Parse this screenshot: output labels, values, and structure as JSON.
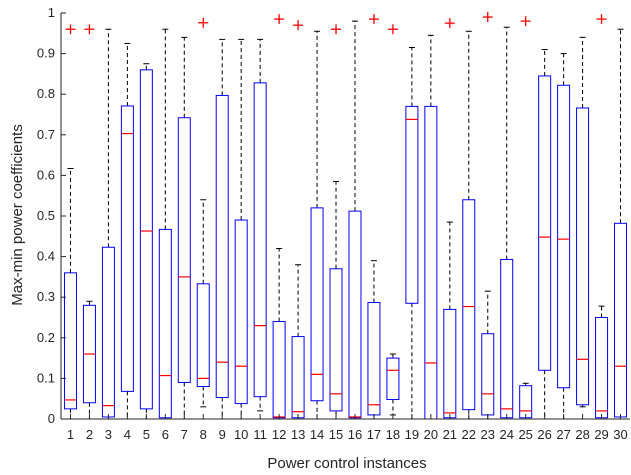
{
  "chart_data": {
    "type": "boxplot",
    "xlabel": "Power control instances",
    "ylabel": "Max-min power coefficients",
    "ylim": [
      0,
      1
    ],
    "yticks": [
      0,
      0.1,
      0.2,
      0.3,
      0.4,
      0.5,
      0.6,
      0.7,
      0.8,
      0.9,
      1
    ],
    "ytick_labels": [
      "0",
      "0.1",
      "0.2",
      "0.3",
      "0.4",
      "0.5",
      "0.6",
      "0.7",
      "0.8",
      "0.9",
      "1"
    ],
    "categories": [
      "1",
      "2",
      "3",
      "4",
      "5",
      "6",
      "7",
      "8",
      "9",
      "10",
      "11",
      "12",
      "13",
      "14",
      "15",
      "16",
      "17",
      "18",
      "19",
      "20",
      "21",
      "22",
      "23",
      "24",
      "25",
      "26",
      "27",
      "28",
      "29",
      "30"
    ],
    "grid": false,
    "colors": {
      "box": "#0000ff",
      "median": "#ff0000",
      "whisker": "#000000",
      "outlier": "#ff0000",
      "axis": "#262626"
    },
    "boxes": [
      {
        "lower_whisker": 0.0,
        "q1": 0.025,
        "median": 0.047,
        "q3": 0.36,
        "upper_whisker": 0.617,
        "outliers": [
          0.96
        ]
      },
      {
        "lower_whisker": 0.0,
        "q1": 0.04,
        "median": 0.16,
        "q3": 0.28,
        "upper_whisker": 0.29,
        "outliers": [
          0.96
        ]
      },
      {
        "lower_whisker": 0.0,
        "q1": 0.005,
        "median": 0.033,
        "q3": 0.423,
        "upper_whisker": 0.96,
        "outliers": []
      },
      {
        "lower_whisker": 0.0,
        "q1": 0.068,
        "median": 0.703,
        "q3": 0.771,
        "upper_whisker": 0.925,
        "outliers": []
      },
      {
        "lower_whisker": 0.0,
        "q1": 0.025,
        "median": 0.463,
        "q3": 0.86,
        "upper_whisker": 0.875,
        "outliers": []
      },
      {
        "lower_whisker": 0.0,
        "q1": 0.003,
        "median": 0.107,
        "q3": 0.467,
        "upper_whisker": 0.96,
        "outliers": []
      },
      {
        "lower_whisker": 0.0,
        "q1": 0.09,
        "median": 0.35,
        "q3": 0.742,
        "upper_whisker": 0.94,
        "outliers": []
      },
      {
        "lower_whisker": 0.03,
        "q1": 0.08,
        "median": 0.1,
        "q3": 0.333,
        "upper_whisker": 0.54,
        "outliers": [
          0.976
        ]
      },
      {
        "lower_whisker": 0.0,
        "q1": 0.053,
        "median": 0.14,
        "q3": 0.797,
        "upper_whisker": 0.935,
        "outliers": []
      },
      {
        "lower_whisker": 0.0,
        "q1": 0.038,
        "median": 0.13,
        "q3": 0.49,
        "upper_whisker": 0.935,
        "outliers": []
      },
      {
        "lower_whisker": 0.02,
        "q1": 0.055,
        "median": 0.23,
        "q3": 0.828,
        "upper_whisker": 0.935,
        "outliers": []
      },
      {
        "lower_whisker": 0.0,
        "q1": 0.003,
        "median": 0.005,
        "q3": 0.24,
        "upper_whisker": 0.42,
        "outliers": [
          0.985
        ]
      },
      {
        "lower_whisker": 0.0,
        "q1": 0.003,
        "median": 0.018,
        "q3": 0.203,
        "upper_whisker": 0.38,
        "outliers": [
          0.97
        ]
      },
      {
        "lower_whisker": 0.0,
        "q1": 0.045,
        "median": 0.11,
        "q3": 0.52,
        "upper_whisker": 0.955,
        "outliers": []
      },
      {
        "lower_whisker": 0.0,
        "q1": 0.02,
        "median": 0.062,
        "q3": 0.37,
        "upper_whisker": 0.585,
        "outliers": [
          0.96
        ]
      },
      {
        "lower_whisker": 0.0,
        "q1": 0.003,
        "median": 0.005,
        "q3": 0.512,
        "upper_whisker": 0.98,
        "outliers": []
      },
      {
        "lower_whisker": 0.0,
        "q1": 0.01,
        "median": 0.035,
        "q3": 0.287,
        "upper_whisker": 0.39,
        "outliers": [
          0.985
        ]
      },
      {
        "lower_whisker": 0.01,
        "q1": 0.048,
        "median": 0.12,
        "q3": 0.15,
        "upper_whisker": 0.16,
        "outliers": [
          0.96
        ]
      },
      {
        "lower_whisker": 0.0,
        "q1": 0.285,
        "median": 0.738,
        "q3": 0.77,
        "upper_whisker": 0.915,
        "outliers": []
      },
      {
        "lower_whisker": 0.0,
        "q1": 0.0,
        "median": 0.138,
        "q3": 0.77,
        "upper_whisker": 0.945,
        "outliers": []
      },
      {
        "lower_whisker": 0.0,
        "q1": 0.003,
        "median": 0.015,
        "q3": 0.27,
        "upper_whisker": 0.485,
        "outliers": [
          0.975
        ]
      },
      {
        "lower_whisker": 0.0,
        "q1": 0.023,
        "median": 0.277,
        "q3": 0.54,
        "upper_whisker": 0.955,
        "outliers": []
      },
      {
        "lower_whisker": 0.0,
        "q1": 0.01,
        "median": 0.062,
        "q3": 0.21,
        "upper_whisker": 0.315,
        "outliers": [
          0.99
        ]
      },
      {
        "lower_whisker": 0.0,
        "q1": 0.003,
        "median": 0.025,
        "q3": 0.393,
        "upper_whisker": 0.965,
        "outliers": []
      },
      {
        "lower_whisker": 0.0,
        "q1": 0.003,
        "median": 0.02,
        "q3": 0.082,
        "upper_whisker": 0.088,
        "outliers": [
          0.98
        ]
      },
      {
        "lower_whisker": 0.0,
        "q1": 0.12,
        "median": 0.448,
        "q3": 0.845,
        "upper_whisker": 0.91,
        "outliers": []
      },
      {
        "lower_whisker": 0.0,
        "q1": 0.077,
        "median": 0.443,
        "q3": 0.822,
        "upper_whisker": 0.9,
        "outliers": []
      },
      {
        "lower_whisker": 0.03,
        "q1": 0.035,
        "median": 0.147,
        "q3": 0.766,
        "upper_whisker": 0.94,
        "outliers": []
      },
      {
        "lower_whisker": 0.0,
        "q1": 0.003,
        "median": 0.02,
        "q3": 0.25,
        "upper_whisker": 0.278,
        "outliers": [
          0.985
        ]
      },
      {
        "lower_whisker": 0.0,
        "q1": 0.005,
        "median": 0.13,
        "q3": 0.482,
        "upper_whisker": 0.96,
        "outliers": []
      }
    ]
  }
}
